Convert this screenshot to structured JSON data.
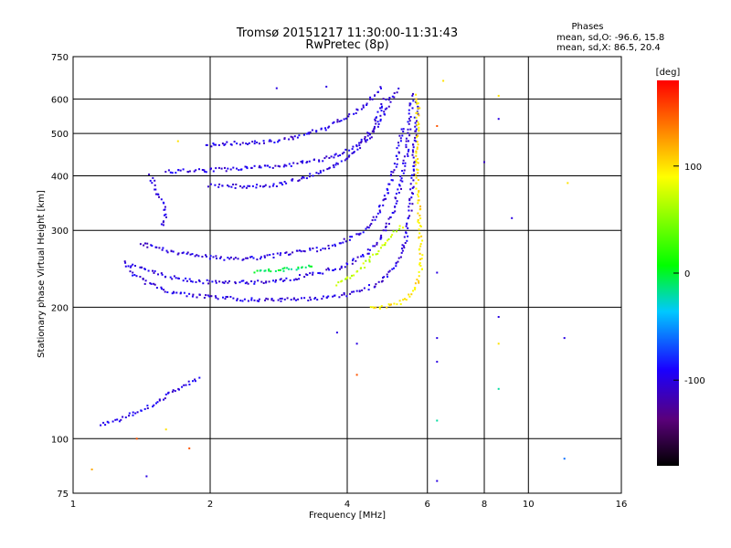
{
  "chart_data": {
    "type": "scatter",
    "title": "Tromsø 20151217 11:30:00-11:31:43",
    "subtitle": "RwPretec (8p)",
    "xlabel": "Frequency [MHz]",
    "ylabel": "Stationary phase Virtual Height [km]",
    "x_scale": "log",
    "y_scale": "log",
    "xlim": [
      1,
      16
    ],
    "ylim": [
      75,
      750
    ],
    "x_ticks": [
      "1",
      "2",
      "4",
      "6",
      "8",
      "10",
      "16"
    ],
    "y_ticks": [
      "750",
      "600",
      "500",
      "400",
      "300",
      "200",
      "100",
      "75"
    ],
    "grid": true,
    "stats": {
      "heading": "Phases",
      "line_o": "mean, sd,O: -96.6, 15.8",
      "line_x": "mean, sd,X:  86.5, 20.4"
    },
    "colorbar": {
      "unit": "[deg]",
      "ticks": [
        "100",
        "0",
        "-100"
      ],
      "range": [
        -180,
        180
      ]
    },
    "traces": [
      {
        "phase": -100,
        "points": [
          [
            1.3,
            255
          ],
          [
            1.35,
            240
          ],
          [
            1.45,
            228
          ],
          [
            1.6,
            218
          ],
          [
            1.8,
            213
          ],
          [
            2.1,
            210
          ],
          [
            2.5,
            208
          ],
          [
            3.0,
            208
          ],
          [
            3.5,
            210
          ],
          [
            4.0,
            214
          ],
          [
            4.3,
            218
          ],
          [
            4.6,
            225
          ],
          [
            4.9,
            235
          ],
          [
            5.1,
            248
          ],
          [
            5.3,
            270
          ],
          [
            5.4,
            295
          ],
          [
            5.5,
            330
          ],
          [
            5.55,
            380
          ],
          [
            5.6,
            440
          ],
          [
            5.65,
            520
          ],
          [
            5.7,
            600
          ]
        ]
      },
      {
        "phase": -100,
        "points": [
          [
            1.35,
            250
          ],
          [
            1.5,
            240
          ],
          [
            1.7,
            232
          ],
          [
            2.0,
            228
          ],
          [
            2.5,
            228
          ],
          [
            3.0,
            232
          ],
          [
            3.5,
            240
          ],
          [
            4.0,
            250
          ],
          [
            4.4,
            265
          ],
          [
            4.7,
            285
          ],
          [
            5.0,
            320
          ],
          [
            5.2,
            370
          ],
          [
            5.4,
            450
          ],
          [
            5.5,
            540
          ],
          [
            5.55,
            620
          ]
        ]
      },
      {
        "phase": -100,
        "points": [
          [
            1.4,
            280
          ],
          [
            1.6,
            270
          ],
          [
            1.9,
            262
          ],
          [
            2.2,
            258
          ],
          [
            2.6,
            260
          ],
          [
            3.0,
            266
          ],
          [
            3.5,
            272
          ],
          [
            4.0,
            285
          ],
          [
            4.4,
            300
          ],
          [
            4.7,
            330
          ],
          [
            4.95,
            380
          ],
          [
            5.15,
            440
          ],
          [
            5.3,
            520
          ]
        ]
      },
      {
        "phase": -100,
        "points": [
          [
            1.6,
            410
          ],
          [
            1.8,
            410
          ],
          [
            2.0,
            412
          ],
          [
            2.3,
            415
          ],
          [
            2.6,
            418
          ],
          [
            3.0,
            424
          ],
          [
            3.4,
            432
          ],
          [
            3.8,
            445
          ],
          [
            4.2,
            470
          ],
          [
            4.5,
            505
          ],
          [
            4.7,
            555
          ],
          [
            4.85,
            610
          ]
        ]
      },
      {
        "phase": -100,
        "points": [
          [
            2.0,
            380
          ],
          [
            2.4,
            378
          ],
          [
            2.8,
            382
          ],
          [
            3.2,
            395
          ],
          [
            3.6,
            412
          ],
          [
            4.0,
            440
          ],
          [
            4.4,
            480
          ],
          [
            4.7,
            530
          ],
          [
            5.0,
            600
          ],
          [
            5.2,
            640
          ]
        ]
      },
      {
        "phase": -100,
        "points": [
          [
            1.95,
            470
          ],
          [
            2.3,
            475
          ],
          [
            2.8,
            480
          ],
          [
            3.2,
            495
          ],
          [
            3.6,
            515
          ],
          [
            4.0,
            545
          ],
          [
            4.4,
            585
          ],
          [
            4.8,
            640
          ]
        ]
      },
      {
        "phase": -100,
        "points": [
          [
            1.48,
            400
          ],
          [
            1.52,
            370
          ],
          [
            1.58,
            345
          ],
          [
            1.6,
            320
          ],
          [
            1.55,
            305
          ]
        ]
      },
      {
        "phase": -100,
        "points": [
          [
            1.15,
            108
          ],
          [
            1.25,
            110
          ],
          [
            1.35,
            114
          ],
          [
            1.45,
            118
          ],
          [
            1.55,
            122
          ],
          [
            1.65,
            128
          ],
          [
            1.75,
            132
          ],
          [
            1.9,
            138
          ]
        ]
      },
      {
        "phase": 100,
        "points": [
          [
            4.5,
            200
          ],
          [
            4.8,
            200
          ],
          [
            5.2,
            205
          ],
          [
            5.5,
            212
          ],
          [
            5.7,
            225
          ],
          [
            5.8,
            245
          ],
          [
            5.8,
            280
          ],
          [
            5.75,
            330
          ],
          [
            5.7,
            400
          ],
          [
            5.7,
            480
          ],
          [
            5.72,
            560
          ],
          [
            5.7,
            620
          ]
        ]
      },
      {
        "phase": 70,
        "points": [
          [
            3.8,
            225
          ],
          [
            4.2,
            240
          ],
          [
            4.6,
            265
          ],
          [
            5.0,
            290
          ],
          [
            5.3,
            310
          ]
        ]
      },
      {
        "phase": -10,
        "points": [
          [
            2.5,
            240
          ],
          [
            3.0,
            245
          ],
          [
            3.4,
            250
          ]
        ]
      }
    ],
    "isolated": [
      {
        "x": 6.3,
        "y": 240,
        "phase": -100
      },
      {
        "x": 6.3,
        "y": 170,
        "phase": -100
      },
      {
        "x": 6.3,
        "y": 150,
        "phase": -100
      },
      {
        "x": 6.3,
        "y": 80,
        "phase": -100
      },
      {
        "x": 6.3,
        "y": 110,
        "phase": -20
      },
      {
        "x": 8.6,
        "y": 190,
        "phase": -100
      },
      {
        "x": 8.6,
        "y": 130,
        "phase": -20
      },
      {
        "x": 8.6,
        "y": 540,
        "phase": -100
      },
      {
        "x": 8.6,
        "y": 610,
        "phase": 100
      },
      {
        "x": 8.6,
        "y": 165,
        "phase": 100
      },
      {
        "x": 8.0,
        "y": 430,
        "phase": -110
      },
      {
        "x": 9.2,
        "y": 320,
        "phase": -100
      },
      {
        "x": 12.0,
        "y": 170,
        "phase": -100
      },
      {
        "x": 12.0,
        "y": 90,
        "phase": -60
      },
      {
        "x": 12.2,
        "y": 385,
        "phase": 100
      },
      {
        "x": 3.8,
        "y": 175,
        "phase": -100
      },
      {
        "x": 4.2,
        "y": 140,
        "phase": 150
      },
      {
        "x": 4.2,
        "y": 165,
        "phase": -100
      },
      {
        "x": 1.1,
        "y": 85,
        "phase": 120
      },
      {
        "x": 1.45,
        "y": 82,
        "phase": -100
      },
      {
        "x": 1.38,
        "y": 100,
        "phase": 150
      },
      {
        "x": 1.8,
        "y": 95,
        "phase": 150
      },
      {
        "x": 1.6,
        "y": 105,
        "phase": 100
      },
      {
        "x": 6.3,
        "y": 520,
        "phase": 150
      },
      {
        "x": 6.5,
        "y": 660,
        "phase": 100
      },
      {
        "x": 2.8,
        "y": 635,
        "phase": -100
      },
      {
        "x": 3.6,
        "y": 640,
        "phase": -100
      },
      {
        "x": 1.7,
        "y": 480,
        "phase": 100
      }
    ]
  }
}
